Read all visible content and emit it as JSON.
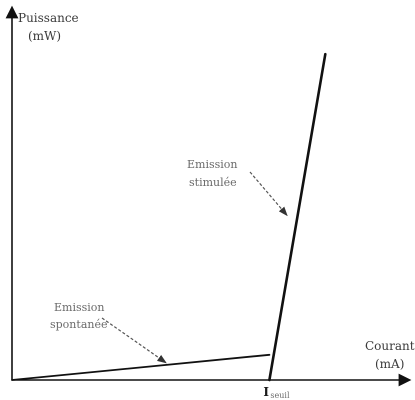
{
  "chart_data": {
    "type": "line",
    "title": "",
    "ylabel_line1": "Puissance",
    "ylabel_line2": "(mW)",
    "xlabel_line1": "Courant",
    "xlabel_line2": "(mA)",
    "threshold_label": "I",
    "threshold_sub": "seuil",
    "threshold_x": 0.69,
    "xlim": [
      0,
      1
    ],
    "ylim": [
      0,
      1
    ],
    "series": [
      {
        "x": [
          0,
          0.69
        ],
        "y": [
          0,
          0.07
        ]
      },
      {
        "x": [
          0.69,
          0.84
        ],
        "y": [
          0,
          0.905
        ]
      }
    ],
    "annotations": [
      {
        "line1": "Emission",
        "line2": "spontanée",
        "target": [
          0.41,
          0.05
        ]
      },
      {
        "line1": "Emission",
        "line2": "stimulée",
        "target": [
          0.735,
          0.46
        ]
      }
    ],
    "grid": false,
    "axis_color": "#111111",
    "series_color": "#111111",
    "annotation_color": "#555555"
  }
}
